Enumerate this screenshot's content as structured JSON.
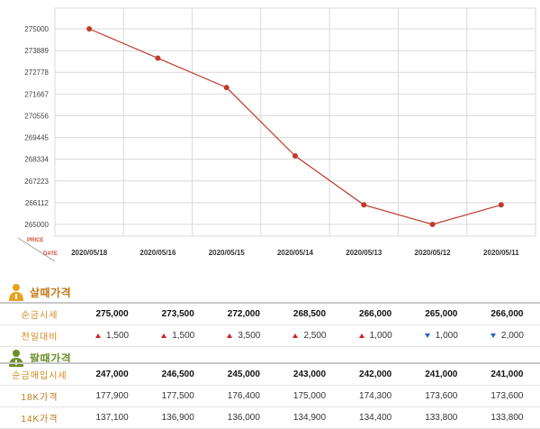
{
  "chart_data": {
    "type": "line",
    "y_axis_label": "PRICE",
    "x_axis_label": "DATE",
    "y_ticks": [
      "275000",
      "273889",
      "272778",
      "271667",
      "270556",
      "269445",
      "268334",
      "267223",
      "266112",
      "265000"
    ],
    "ylim": [
      265000,
      275000
    ],
    "categories": [
      "2020/05/18",
      "2020/05/16",
      "2020/05/15",
      "2020/05/14",
      "2020/05/13",
      "2020/05/12",
      "2020/05/11"
    ],
    "series": [
      {
        "values": [
          275000,
          273500,
          272000,
          268500,
          266000,
          265000,
          266000
        ]
      }
    ],
    "grid": true,
    "colors": {
      "line": "#c0392b",
      "marker": "#c0392b",
      "grid": "#d9d9d9"
    }
  },
  "buy_section": {
    "title": "살때가격",
    "rows": [
      {
        "label": "순금시세",
        "values": [
          "275,000",
          "273,500",
          "272,000",
          "268,500",
          "266,000",
          "265,000",
          "266,000"
        ]
      }
    ],
    "change_row": {
      "label": "전일대비",
      "items": [
        {
          "dir": "up",
          "value": "1,500"
        },
        {
          "dir": "up",
          "value": "1,500"
        },
        {
          "dir": "up",
          "value": "3,500"
        },
        {
          "dir": "up",
          "value": "2,500"
        },
        {
          "dir": "up",
          "value": "1,000"
        },
        {
          "dir": "down",
          "value": "1,000"
        },
        {
          "dir": "down",
          "value": "2,000"
        }
      ]
    }
  },
  "sell_section": {
    "title": "팔때가격",
    "rows": [
      {
        "label": "순금매입시세",
        "values": [
          "247,000",
          "246,500",
          "245,000",
          "243,000",
          "242,000",
          "241,000",
          "241,000"
        ]
      },
      {
        "label": "18K가격",
        "values": [
          "177,900",
          "177,500",
          "176,400",
          "175,000",
          "174,300",
          "173,600",
          "173,600"
        ]
      },
      {
        "label": "14K가격",
        "values": [
          "137,100",
          "136,900",
          "136,000",
          "134,900",
          "134,400",
          "133,800",
          "133,800"
        ]
      }
    ]
  }
}
